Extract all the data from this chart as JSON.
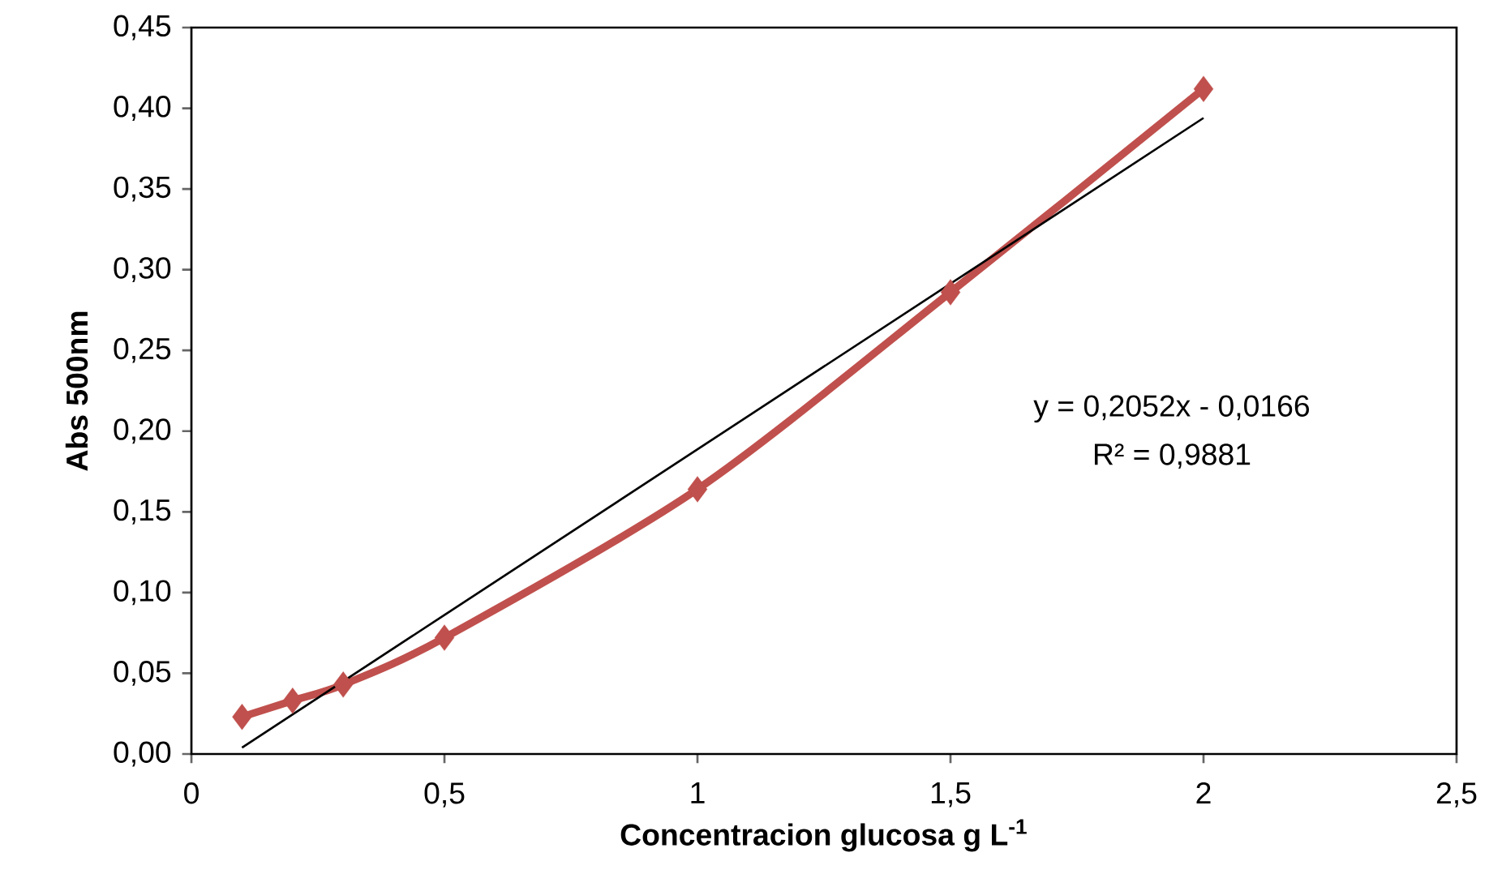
{
  "chart_data": {
    "type": "line",
    "xlabel": "Concentracion glucosa g L$^{-1}$",
    "ylabel": "Abs 500nm",
    "xlim": [
      0,
      2.5
    ],
    "ylim": [
      0,
      0.45
    ],
    "xticks": [
      0,
      {
        "value": 0.5,
        "label": "0,5"
      },
      1,
      {
        "value": 1.5,
        "label": "1,5"
      },
      2,
      {
        "value": 2.5,
        "label": "2,5"
      }
    ],
    "yticks": [
      {
        "value": 0,
        "label": "0,00"
      },
      {
        "value": 0.05,
        "label": "0,05"
      },
      {
        "value": 0.1,
        "label": "0,10"
      },
      {
        "value": 0.15,
        "label": "0,15"
      },
      {
        "value": 0.2,
        "label": "0,20"
      },
      {
        "value": 0.25,
        "label": "0,25"
      },
      {
        "value": 0.3,
        "label": "0,30"
      },
      {
        "value": 0.35,
        "label": "0,35"
      },
      {
        "value": 0.4,
        "label": "0,40"
      },
      {
        "value": 0.45,
        "label": "0,45"
      }
    ],
    "grid": false,
    "series": [
      {
        "color": "#c0504d",
        "marker": "diamond",
        "x": [
          0.1,
          0.2,
          0.3,
          0.5,
          1,
          1.5,
          2
        ],
        "values": [
          0.023,
          0.033,
          0.043,
          0.072,
          0.164,
          0.286,
          0.412
        ]
      },
      {
        "type": "line",
        "color": "#000000",
        "marker": "none",
        "x": [
          0.1,
          2
        ],
        "values": [
          0.004,
          0.394
        ]
      }
    ],
    "annotations": [
      "y = 0,2052x - 0,0166",
      "R² = 0,9881"
    ]
  }
}
